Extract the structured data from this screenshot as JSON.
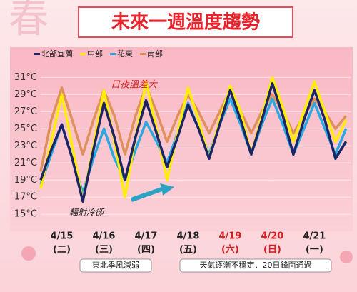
{
  "chart_data": {
    "type": "line",
    "title": "未來一週溫度趨勢",
    "background_text": "春",
    "categories": [
      null,
      null,
      "4/15",
      null,
      null,
      null,
      "4/16",
      null,
      null,
      null,
      "4/17",
      null,
      null,
      null,
      "4/18",
      null,
      null,
      null,
      "4/19",
      null,
      null,
      null,
      "4/20",
      null,
      null,
      null,
      "4/21",
      null,
      null,
      null
    ],
    "weekday_labels": [
      null,
      null,
      "(二)",
      null,
      null,
      null,
      "(三)",
      null,
      null,
      null,
      "(四)",
      null,
      null,
      null,
      "(五)",
      null,
      null,
      null,
      "(六)",
      null,
      null,
      null,
      "(日)",
      null,
      null,
      null,
      "(一)",
      null,
      null,
      null
    ],
    "label_colors": [
      null,
      null,
      "#222222",
      null,
      null,
      null,
      "#222222",
      null,
      null,
      null,
      "#222222",
      null,
      null,
      null,
      "#222222",
      null,
      null,
      null,
      "#d42020",
      null,
      null,
      null,
      "#d42020",
      null,
      null,
      null,
      "#222222",
      null,
      null,
      null
    ],
    "series": [
      {
        "name": "北部宜蘭",
        "color": "#1a2466",
        "values": [
          19,
          22.5,
          25.5,
          21.5,
          16.5,
          22.5,
          28,
          24,
          19,
          24,
          28.3,
          24.5,
          20.5,
          24,
          27.8,
          25,
          21.5,
          25.5,
          29.5,
          26,
          22,
          26,
          30.3,
          26.5,
          22,
          26,
          29.5,
          26,
          21.5,
          23.5
        ]
      },
      {
        "name": "中部",
        "color": "#ffee00",
        "values": [
          18,
          23.5,
          29,
          23,
          16.5,
          23,
          29.5,
          23.5,
          17,
          24,
          30.5,
          25,
          19,
          24.5,
          29.8,
          26,
          21.5,
          26,
          30,
          27,
          22,
          26.5,
          31,
          27.5,
          23.5,
          27,
          30.5,
          27,
          23.5,
          26
        ]
      },
      {
        "name": "花東",
        "color": "#29a9e0",
        "values": [
          18.5,
          22,
          25.5,
          21.5,
          17.5,
          21.5,
          25,
          21.5,
          19,
          22.5,
          25.8,
          23.5,
          21,
          24.5,
          28,
          25,
          22,
          25.5,
          28.5,
          25.5,
          22,
          25.5,
          28.5,
          25.5,
          22,
          25,
          28,
          25,
          22,
          25
        ]
      },
      {
        "name": "南部",
        "color": "#e0905a",
        "values": [
          20,
          26,
          29.8,
          26,
          22,
          26,
          29.5,
          26.5,
          22,
          26.5,
          30,
          27,
          23.5,
          26.5,
          29,
          27,
          24.5,
          27,
          29.5,
          27,
          24.5,
          27,
          29,
          27,
          24.5,
          26.5,
          28.5,
          27,
          25,
          26.5
        ]
      }
    ],
    "ylim": [
      13.35,
      34.2
    ],
    "yticks": [
      {
        "value": 15,
        "label": "15°C"
      },
      {
        "value": 17,
        "label": "17°C"
      },
      {
        "value": 19,
        "label": "19°C"
      },
      {
        "value": 21,
        "label": "21°C"
      },
      {
        "value": 23,
        "label": "23°C"
      },
      {
        "value": 25,
        "label": "25°C"
      },
      {
        "value": 27,
        "label": "27°C"
      },
      {
        "value": 29,
        "label": "29°C"
      },
      {
        "value": 31,
        "label": "31°C"
      }
    ],
    "grid": true,
    "annotations": [
      "日夜溫差大",
      "輻射冷卻"
    ],
    "notes": [
      "東北季風減弱",
      "天氣逐漸不穩定．20日鋒面通過"
    ]
  }
}
